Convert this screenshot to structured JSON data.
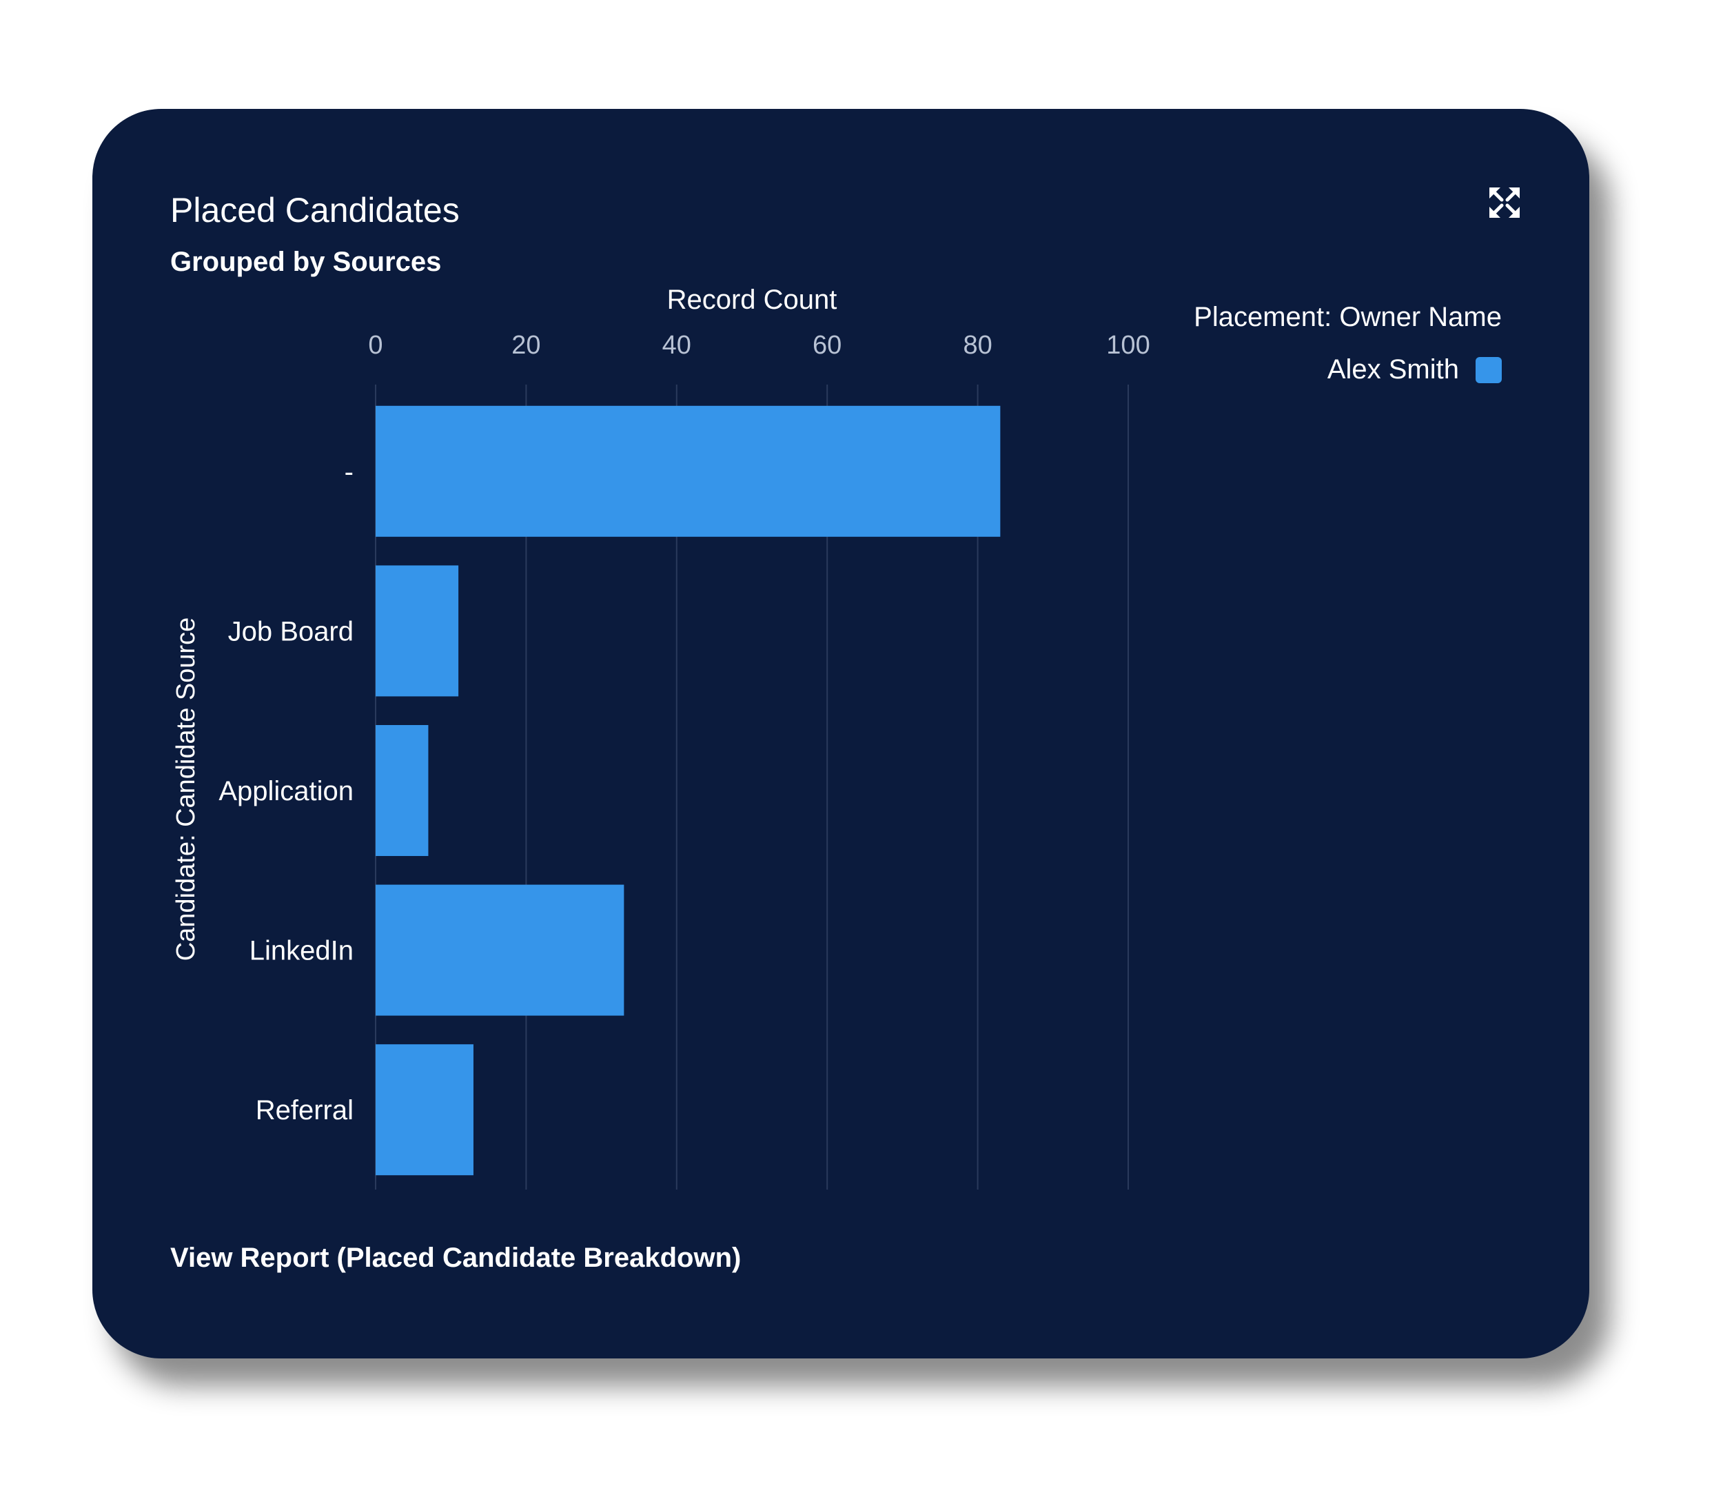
{
  "header": {
    "title": "Placed Candidates",
    "subtitle": "Grouped by Sources",
    "expand_icon": "expand-arrows-icon"
  },
  "footer": {
    "link_label": "View Report (Placed Candidate Breakdown)"
  },
  "legend": {
    "title": "Placement: Owner Name",
    "items": [
      {
        "label": "Alex Smith",
        "color": "#3695ea"
      }
    ]
  },
  "colors": {
    "background": "#0b1b3d",
    "bar": "#3695ea"
  },
  "chart_data": {
    "type": "bar",
    "orientation": "horizontal",
    "categories": [
      "-",
      "Job Board",
      "Application",
      "LinkedIn",
      "Referral"
    ],
    "series": [
      {
        "name": "Alex Smith",
        "values": [
          83,
          11,
          7,
          33,
          13
        ]
      }
    ],
    "xlabel": "Record Count",
    "ylabel": "Candidate: Candidate Source",
    "xlim": [
      0,
      100
    ],
    "xticks": [
      0,
      20,
      40,
      60,
      80,
      100
    ],
    "xaxis_position": "top",
    "grid": true,
    "legend_position": "top-right"
  }
}
